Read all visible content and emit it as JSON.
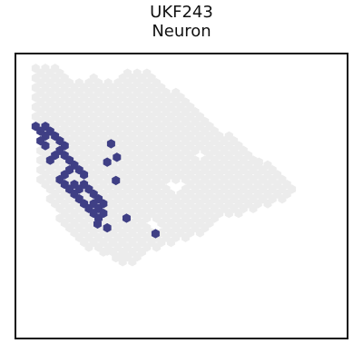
{
  "chart_data": {
    "type": "scatter",
    "title": "UKF243",
    "subtitle": "Neuron",
    "xlabel": "",
    "ylabel": "",
    "grid": false,
    "legend": "none",
    "axes_ticks": false,
    "colors": {
      "background_spots": "#ececec",
      "highlight_spots": "#3f3f85",
      "frame": "#111111"
    },
    "tissue_outline": [
      [
        0.3,
        0.4
      ],
      [
        3.4,
        0.4
      ],
      [
        3.6,
        1.3
      ],
      [
        5.5,
        2.1
      ],
      [
        5.8,
        1.9
      ],
      [
        6.4,
        1.2
      ],
      [
        6.8,
        1.7
      ],
      [
        7.7,
        1.9
      ],
      [
        8.9,
        1.6
      ],
      [
        9.9,
        0.8
      ],
      [
        11.8,
        0.9
      ],
      [
        13.0,
        1.3
      ],
      [
        14.0,
        2.4
      ],
      [
        14.8,
        2.8
      ],
      [
        15.9,
        3.3
      ],
      [
        16.6,
        3.9
      ],
      [
        17.4,
        4.9
      ],
      [
        17.6,
        5.3
      ],
      [
        18.4,
        6.2
      ],
      [
        19.7,
        7.0
      ],
      [
        20.5,
        7.4
      ],
      [
        21.5,
        8.3
      ],
      [
        22.4,
        9.0
      ],
      [
        23.8,
        10.0
      ],
      [
        24.8,
        10.5
      ],
      [
        25.9,
        11.1
      ],
      [
        26.7,
        11.7
      ],
      [
        27.2,
        12.2
      ],
      [
        27.6,
        13.1
      ],
      [
        26.3,
        13.9
      ],
      [
        24.9,
        14.6
      ],
      [
        23.5,
        15.2
      ],
      [
        21.1,
        15.6
      ],
      [
        19.7,
        16.1
      ],
      [
        18.6,
        16.9
      ],
      [
        17.1,
        17.9
      ],
      [
        15.5,
        18.4
      ],
      [
        14.2,
        18.6
      ],
      [
        12.8,
        19.2
      ],
      [
        11.7,
        20.0
      ],
      [
        11.0,
        20.6
      ],
      [
        10.5,
        20.8
      ],
      [
        9.8,
        20.9
      ],
      [
        9.0,
        20.5
      ],
      [
        7.6,
        19.6
      ],
      [
        6.0,
        19.3
      ],
      [
        4.5,
        18.3
      ],
      [
        3.6,
        17.4
      ],
      [
        2.9,
        16.2
      ],
      [
        2.2,
        14.6
      ],
      [
        1.6,
        13.7
      ],
      [
        0.9,
        12.2
      ],
      [
        0.8,
        11.4
      ],
      [
        0.7,
        10.3
      ],
      [
        0.6,
        9.0
      ],
      [
        0.5,
        7.3
      ],
      [
        0.4,
        5.5
      ],
      [
        0.3,
        4.0
      ]
    ],
    "highlight_region": [
      [
        0.3,
        6.0
      ],
      [
        0.7,
        5.9
      ],
      [
        1.6,
        6.4
      ],
      [
        2.7,
        7.4
      ],
      [
        3.6,
        8.6
      ],
      [
        4.5,
        9.9
      ],
      [
        5.2,
        10.9
      ],
      [
        6.0,
        12.0
      ],
      [
        6.6,
        13.0
      ],
      [
        7.3,
        14.0
      ],
      [
        7.9,
        15.0
      ],
      [
        7.7,
        16.1
      ],
      [
        6.7,
        16.3
      ],
      [
        5.7,
        15.5
      ],
      [
        4.9,
        14.8
      ],
      [
        4.0,
        13.7
      ],
      [
        3.1,
        12.4
      ],
      [
        2.3,
        11.0
      ],
      [
        1.6,
        9.6
      ],
      [
        1.0,
        8.3
      ],
      [
        0.6,
        7.3
      ]
    ],
    "tissue_gaps": [
      [
        17.4,
        9.4
      ],
      [
        12.6,
        16.8
      ],
      [
        15.0,
        12.7
      ]
    ],
    "highlight_gaps": [
      [
        2.2,
        8.6
      ],
      [
        3.1,
        10.4
      ],
      [
        4.6,
        11.8
      ],
      [
        5.6,
        13.6
      ]
    ],
    "highlight_outliers": [
      [
        8.3,
        8.3
      ],
      [
        8.9,
        9.7
      ],
      [
        7.9,
        10.2
      ],
      [
        8.8,
        12.1
      ],
      [
        9.9,
        16.0
      ],
      [
        6.9,
        16.6
      ],
      [
        7.9,
        17.0
      ],
      [
        12.9,
        17.6
      ]
    ],
    "background_outliers": [
      [
        8.8,
        20.1
      ],
      [
        7.9,
        19.4
      ],
      [
        9.6,
        19.7
      ],
      [
        23.6,
        10.2
      ]
    ]
  }
}
